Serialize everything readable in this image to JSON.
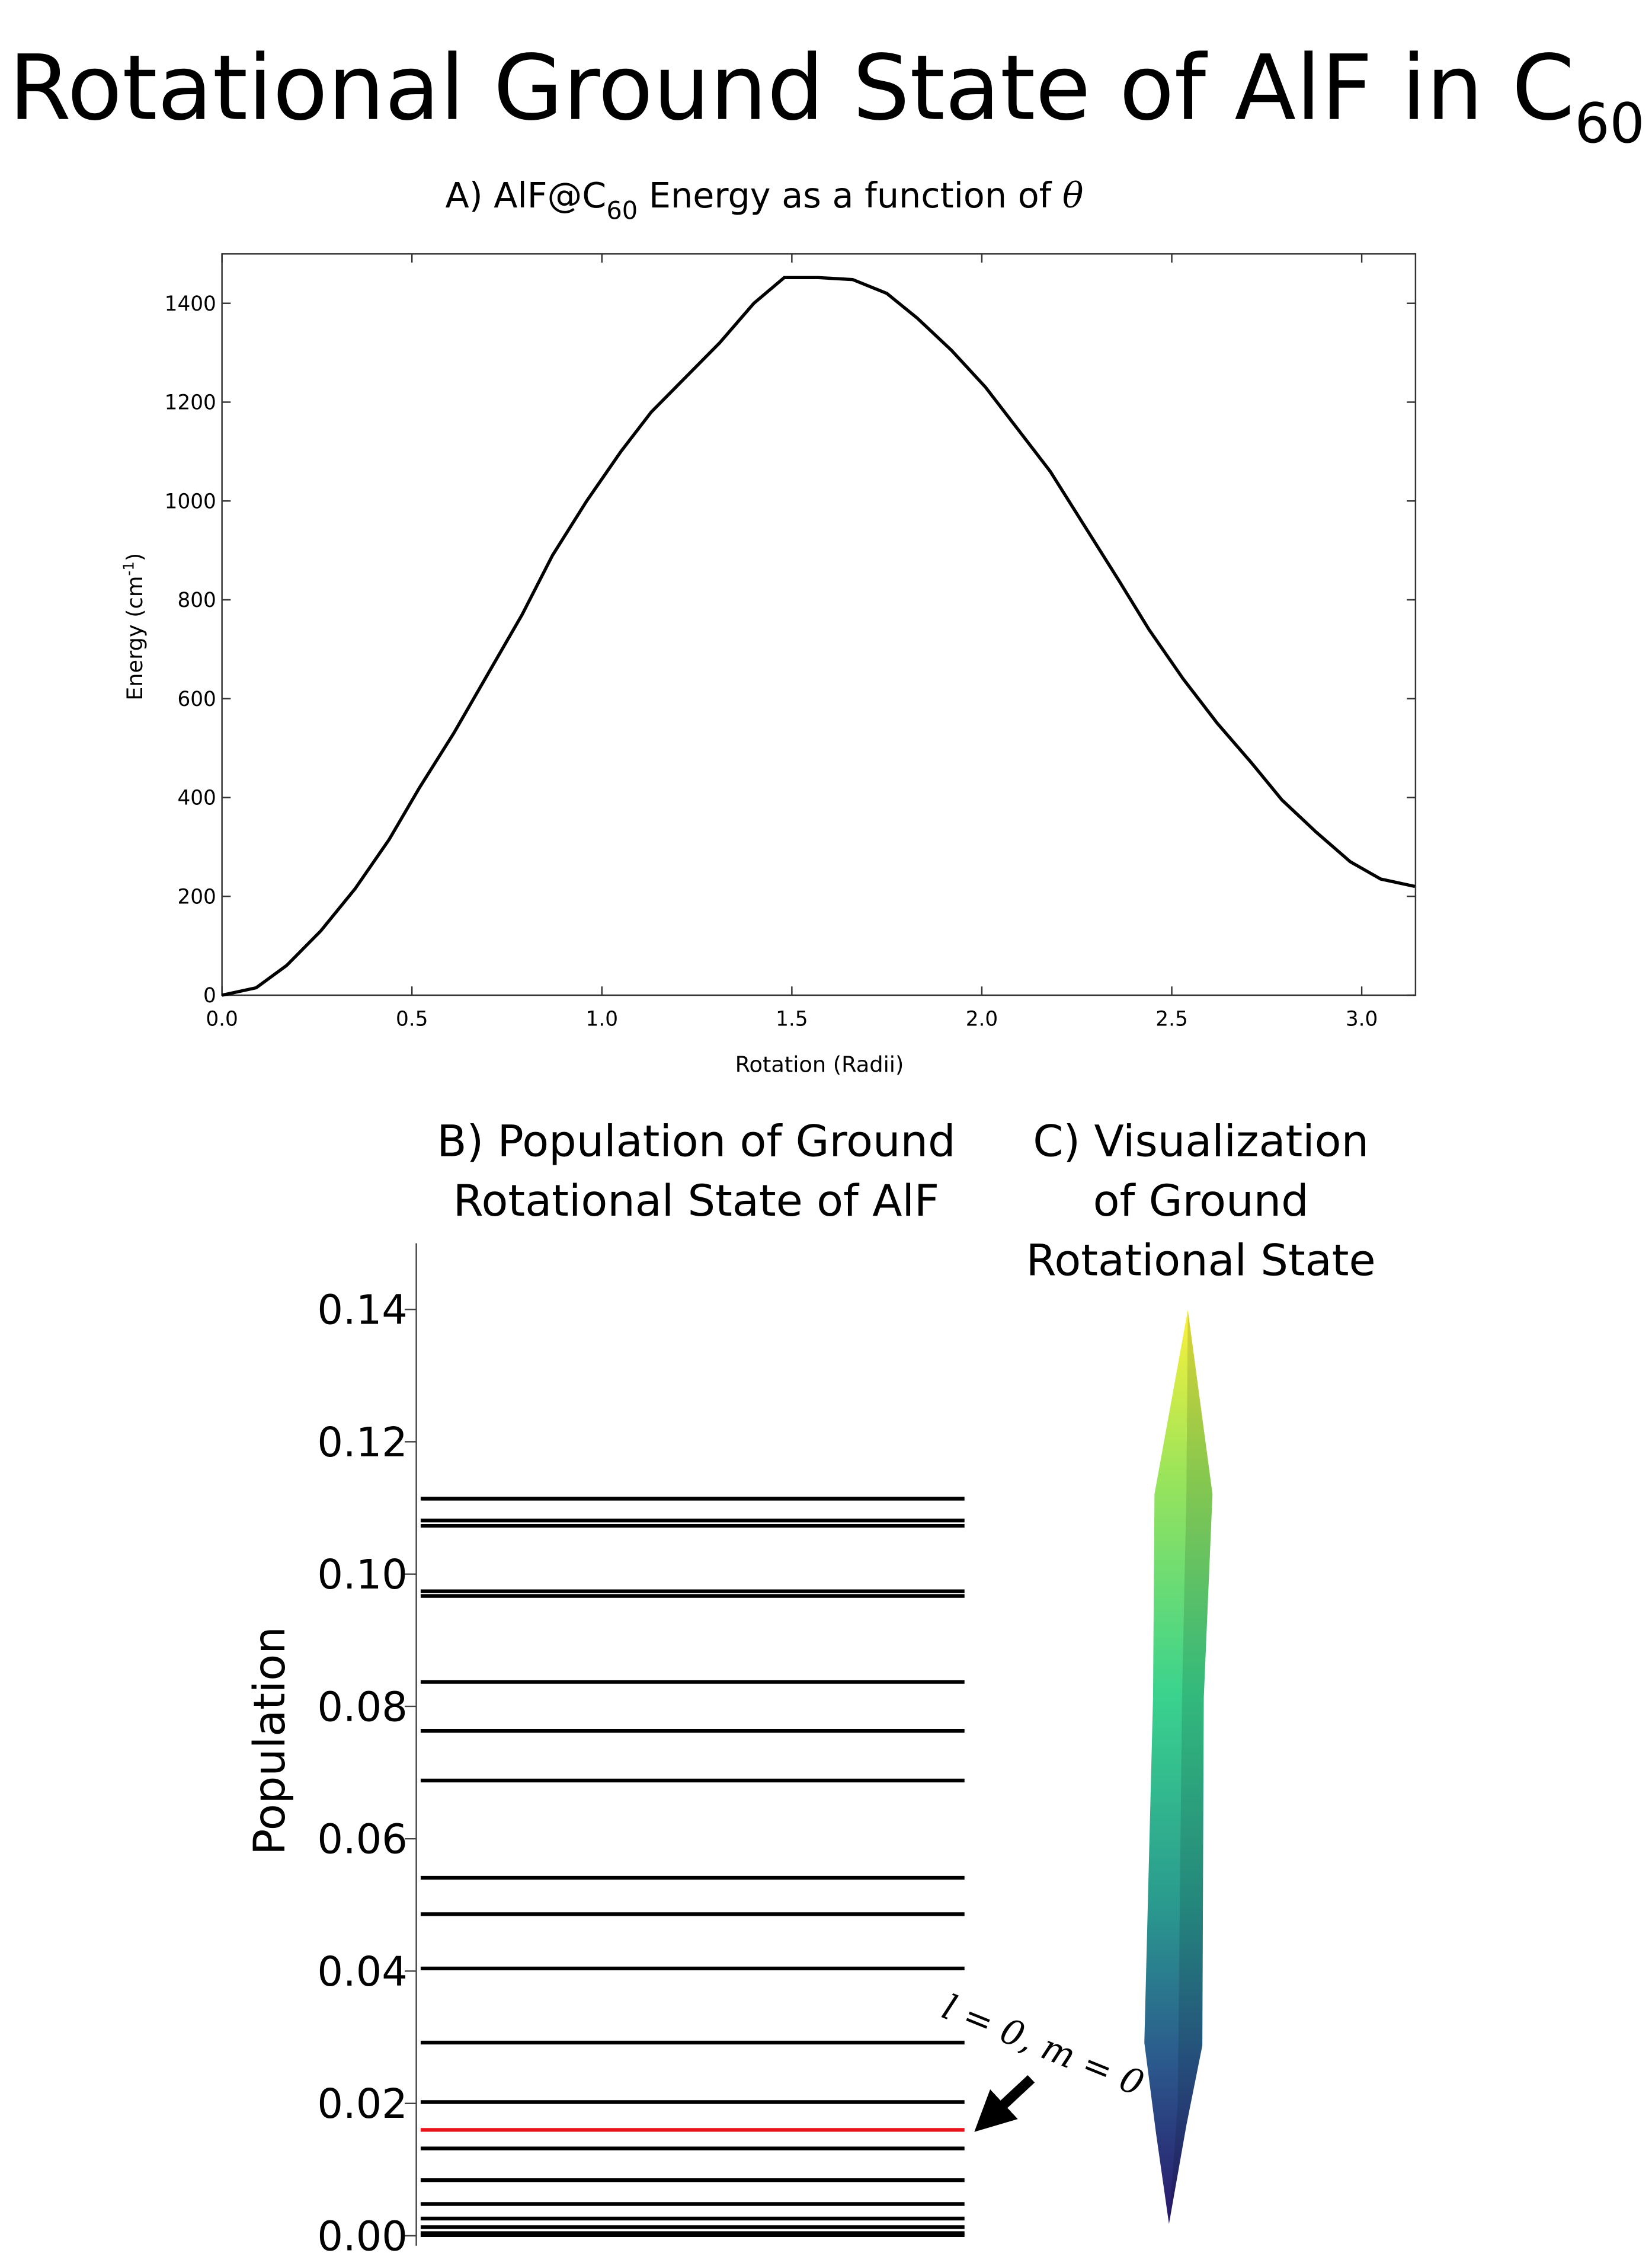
{
  "figure": {
    "title": "Rotational Ground State of AlF in C",
    "title_sub": "60"
  },
  "chart_data": [
    {
      "type": "line",
      "title": "A) AlF@C",
      "title_sub": "60",
      "title_end": " Energy as a function of ",
      "title_symbol": "θ",
      "xlabel": "Rotation (Radii)",
      "ylabel": "Energy (cm",
      "ylabel_sup": "-1",
      "ylabel_end": ")",
      "x": [
        0,
        0.09,
        0.17,
        0.26,
        0.35,
        0.44,
        0.52,
        0.61,
        0.7,
        0.79,
        0.87,
        0.96,
        1.05,
        1.13,
        1.22,
        1.31,
        1.4,
        1.48,
        1.57,
        1.66,
        1.75,
        1.83,
        1.92,
        2.01,
        2.09,
        2.18,
        2.27,
        2.36,
        2.44,
        2.53,
        2.62,
        2.71,
        2.79,
        2.88,
        2.97,
        3.05,
        3.14
      ],
      "values": [
        0,
        15,
        60,
        130,
        215,
        315,
        420,
        530,
        650,
        770,
        890,
        1000,
        1100,
        1180,
        1250,
        1320,
        1400,
        1452,
        1452,
        1448,
        1420,
        1370,
        1305,
        1230,
        1150,
        1060,
        950,
        840,
        740,
        640,
        550,
        470,
        395,
        330,
        270,
        235,
        220
      ],
      "color": "#000000",
      "xlim": [
        0,
        3.1416
      ],
      "ylim": [
        0,
        1500
      ],
      "xticks": [
        {
          "value": 0,
          "label": "0.0"
        },
        {
          "value": 0.5,
          "label": "0.5"
        },
        {
          "value": 1,
          "label": "1.0"
        },
        {
          "value": 1.5,
          "label": "1.5"
        },
        {
          "value": 2,
          "label": "2.0"
        },
        {
          "value": 2.5,
          "label": "2.5"
        },
        {
          "value": 3,
          "label": "3.0"
        }
      ],
      "yticks": [
        0,
        200,
        400,
        600,
        800,
        1000,
        1200,
        1400
      ]
    },
    {
      "type": "levels",
      "title": [
        "B) Population of Ground",
        "Rotational State of AlF"
      ],
      "ylabel": "Population",
      "values": [
        0.1114,
        0.1081,
        0.1073,
        0.0974,
        0.0967,
        0.0837,
        0.0763,
        0.0688,
        0.0541,
        0.0486,
        0.0404,
        0.0292,
        0.0202,
        0.016,
        0.0132,
        0.0084,
        0.0048,
        0.0026,
        0.0013,
        0.0004,
        0.0001
      ],
      "color": "#000000",
      "highlight_index": 13,
      "highlight_color": "#e8131b",
      "annotation": "l = 0, m = 0",
      "ylim": [
        -0.0015,
        0.15
      ],
      "yticks": [
        {
          "value": 0,
          "label": "0.00"
        },
        {
          "value": 0.02,
          "label": "0.02"
        },
        {
          "value": 0.04,
          "label": "0.04"
        },
        {
          "value": 0.06,
          "label": "0.06"
        },
        {
          "value": 0.08,
          "label": "0.08"
        },
        {
          "value": 0.1,
          "label": "0.10"
        },
        {
          "value": 0.12,
          "label": "0.12"
        },
        {
          "value": 0.14,
          "label": "0.14"
        }
      ]
    }
  ],
  "panel_c": {
    "title": [
      "C) Visualization",
      "of Ground",
      "Rotational State"
    ]
  }
}
